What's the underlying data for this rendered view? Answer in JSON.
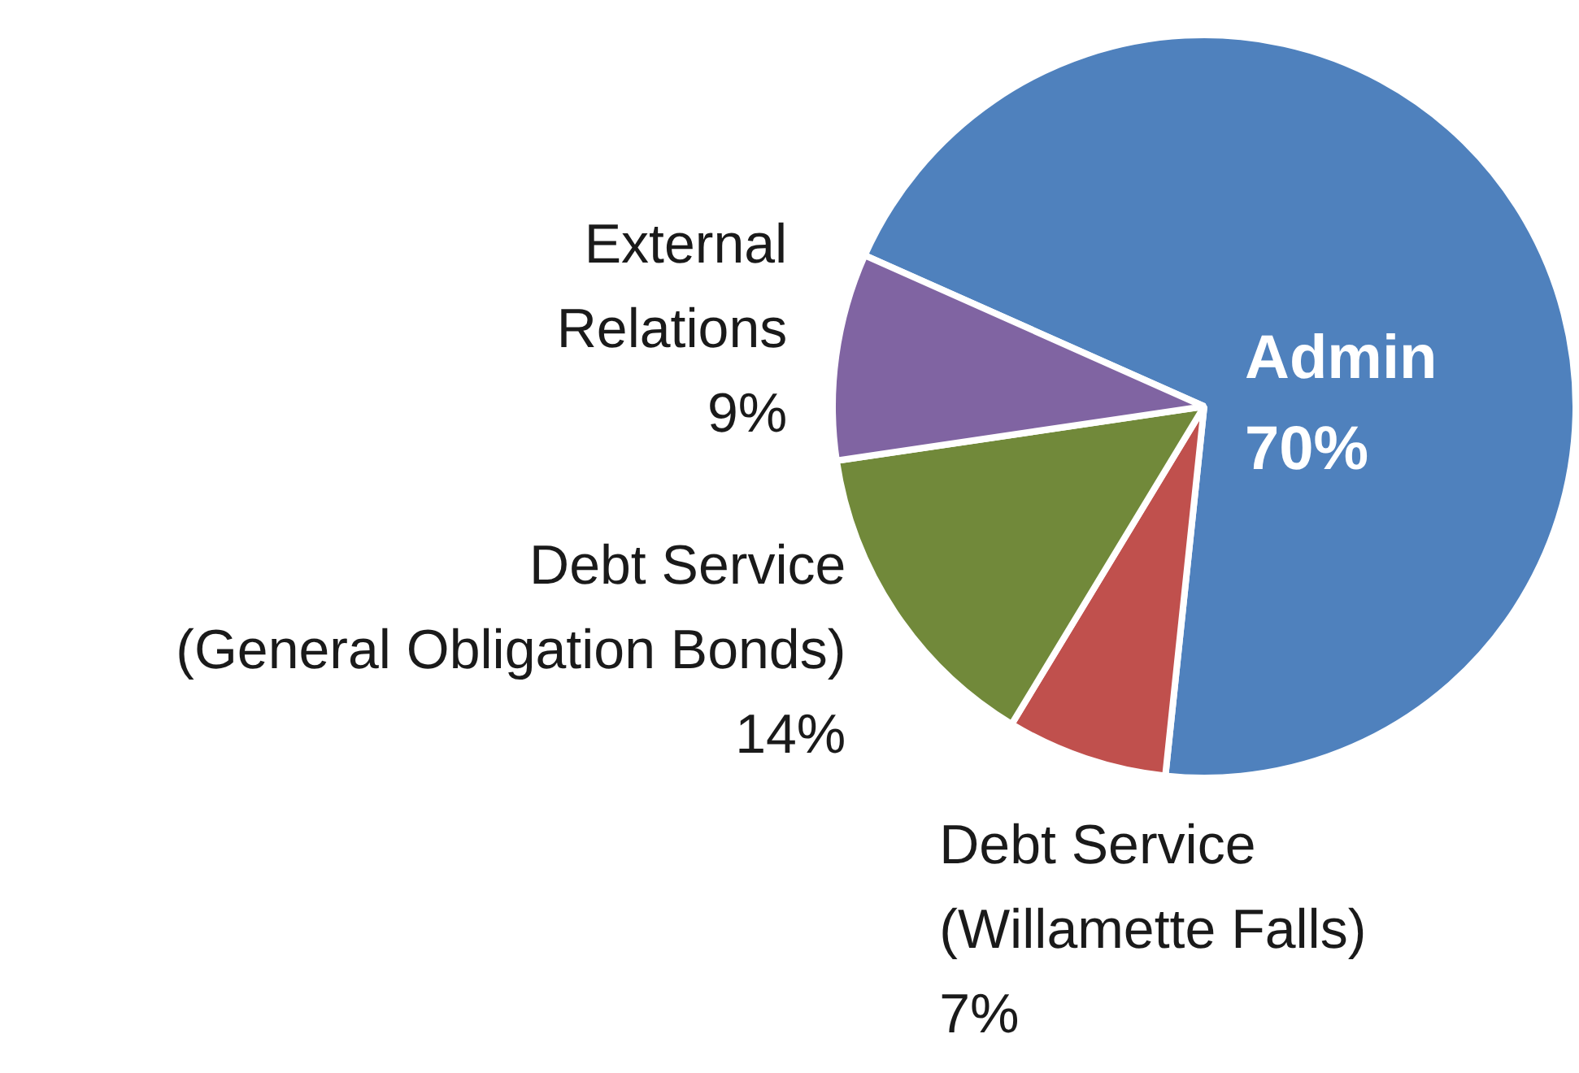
{
  "chart_data": {
    "type": "pie",
    "categories": [
      "Admin",
      "Debt Service (Willamette Falls)",
      "Debt Service (General Obligation Bonds)",
      "External Relations"
    ],
    "values": [
      70,
      7,
      14,
      9
    ],
    "value_labels": [
      "70%",
      "7%",
      "14%",
      "9%"
    ],
    "colors": [
      "#4f81bd",
      "#c0504d",
      "#71893a",
      "#8064a2"
    ],
    "legend": false
  }
}
